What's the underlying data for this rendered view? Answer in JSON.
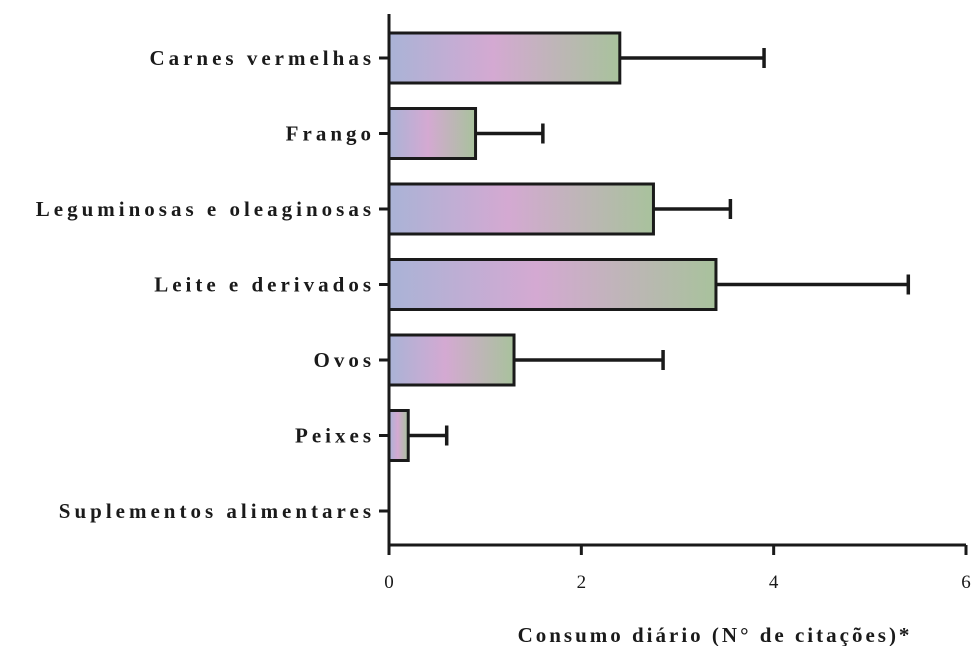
{
  "chart_data": {
    "type": "bar",
    "orientation": "horizontal",
    "categories": [
      "Carnes vermelhas",
      "Frango",
      "Leguminosas e oleaginosas",
      "Leite e derivados",
      "Ovos",
      "Peixes",
      "Suplementos alimentares"
    ],
    "values": [
      2.4,
      0.9,
      2.75,
      3.4,
      1.3,
      0.2,
      0
    ],
    "error": [
      1.5,
      0.7,
      0.8,
      2.0,
      1.55,
      0.4,
      0
    ],
    "xlabel": "Consumo diário (N° de citações)*",
    "ylabel": "",
    "xlim": [
      0,
      6
    ],
    "xticks": [
      "0",
      "2",
      "4",
      "6"
    ],
    "grid": false,
    "bar_fill_colors": [
      "#a9b3d6",
      "#d4a9d2",
      "#a8c29c"
    ],
    "bar_outline_color": "#1a1a1a"
  }
}
